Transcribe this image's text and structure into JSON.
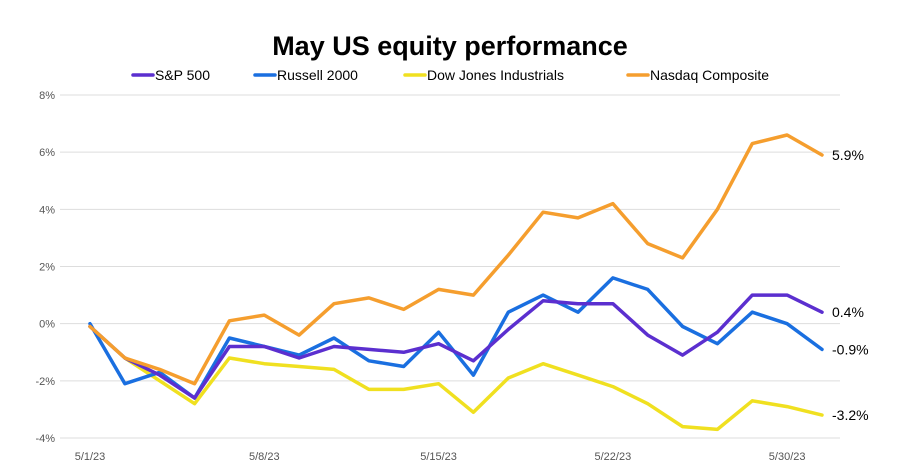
{
  "chart_data": {
    "type": "line",
    "title": "May US equity performance",
    "xlabel": "",
    "ylabel": "",
    "ylim": [
      -4,
      8
    ],
    "yticks": [
      -4,
      -2,
      0,
      2,
      4,
      6,
      8
    ],
    "ytick_labels": [
      "-4%",
      "-2%",
      "0%",
      "2%",
      "4%",
      "6%",
      "8%"
    ],
    "x": [
      "5/1/23",
      "5/2/23",
      "5/3/23",
      "5/4/23",
      "5/5/23",
      "5/8/23",
      "5/9/23",
      "5/10/23",
      "5/11/23",
      "5/12/23",
      "5/15/23",
      "5/16/23",
      "5/17/23",
      "5/18/23",
      "5/19/23",
      "5/22/23",
      "5/23/23",
      "5/24/23",
      "5/25/23",
      "5/26/23",
      "5/30/23",
      "5/31/23"
    ],
    "xtick_labels": [
      "5/1/23",
      "5/8/23",
      "5/15/23",
      "5/22/23",
      "5/30/23"
    ],
    "legend_position": "top",
    "grid": true,
    "series": [
      {
        "name": "S&P 500",
        "color": "#5b2fcf",
        "end_label": "0.4%",
        "values": [
          -0.1,
          -1.2,
          -1.8,
          -2.6,
          -0.8,
          -0.8,
          -1.2,
          -0.8,
          -0.9,
          -1.0,
          -0.7,
          -1.3,
          -0.2,
          0.8,
          0.7,
          0.7,
          -0.4,
          -1.1,
          -0.3,
          1.0,
          1.0,
          0.4
        ]
      },
      {
        "name": "Russell 2000",
        "color": "#1a6fe0",
        "end_label": "-0.9%",
        "values": [
          0.0,
          -2.1,
          -1.7,
          -2.6,
          -0.5,
          -0.8,
          -1.1,
          -0.5,
          -1.3,
          -1.5,
          -0.3,
          -1.8,
          0.4,
          1.0,
          0.4,
          1.6,
          1.2,
          -0.1,
          -0.7,
          0.4,
          0.0,
          -0.9
        ]
      },
      {
        "name": "Dow Jones Industrials",
        "color": "#f0e020",
        "end_label": "-3.2%",
        "values": [
          -0.1,
          -1.2,
          -2.0,
          -2.8,
          -1.2,
          -1.4,
          -1.5,
          -1.6,
          -2.3,
          -2.3,
          -2.1,
          -3.1,
          -1.9,
          -1.4,
          -1.8,
          -2.2,
          -2.8,
          -3.6,
          -3.7,
          -2.7,
          -2.9,
          -3.2
        ]
      },
      {
        "name": "Nasdaq Composite",
        "color": "#f59e2e",
        "end_label": "5.9%",
        "values": [
          -0.1,
          -1.2,
          -1.6,
          -2.1,
          0.1,
          0.3,
          -0.4,
          0.7,
          0.9,
          0.5,
          1.2,
          1.0,
          2.4,
          3.9,
          3.7,
          4.2,
          2.8,
          2.3,
          4.0,
          6.3,
          6.6,
          5.9
        ]
      }
    ]
  }
}
